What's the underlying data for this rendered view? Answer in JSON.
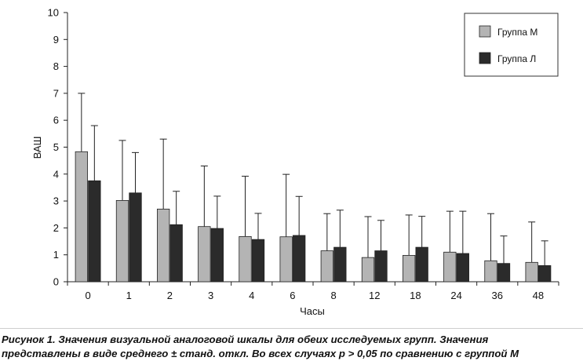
{
  "chart_data": {
    "type": "bar",
    "title": "",
    "xlabel": "Часы",
    "ylabel": "ВАШ",
    "ylim": [
      0,
      10
    ],
    "yticks": [
      "0",
      "1",
      "2",
      "3",
      "4",
      "5",
      "6",
      "7",
      "8",
      "9",
      "10"
    ],
    "categories": [
      "0",
      "1",
      "2",
      "3",
      "4",
      "6",
      "8",
      "12",
      "18",
      "24",
      "36",
      "48"
    ],
    "series": [
      {
        "name": "Группа М",
        "color": "#b4b4b4",
        "values": [
          4.83,
          3.02,
          2.7,
          2.05,
          1.68,
          1.67,
          1.15,
          0.9,
          0.98,
          1.1,
          0.78,
          0.72
        ],
        "errors": [
          2.17,
          2.23,
          2.6,
          2.25,
          2.24,
          2.32,
          1.38,
          1.52,
          1.5,
          1.52,
          1.75,
          1.5
        ]
      },
      {
        "name": "Группа Л",
        "color": "#2b2b2b",
        "values": [
          3.75,
          3.3,
          2.12,
          1.98,
          1.57,
          1.72,
          1.28,
          1.15,
          1.28,
          1.05,
          0.68,
          0.6
        ],
        "errors": [
          2.05,
          1.5,
          1.24,
          1.2,
          0.97,
          1.45,
          1.38,
          1.13,
          1.15,
          1.57,
          1.02,
          0.92
        ]
      }
    ],
    "legend_position": "top-right",
    "grid": false
  },
  "caption": {
    "line1": "Рисунок 1. Значения визуальной аналоговой шкалы для обеих исследуемых групп. Значения",
    "line2": "представлены в виде среднего ± станд. откл. Во всех случаях p > 0,05 по сравнению с группой М"
  }
}
